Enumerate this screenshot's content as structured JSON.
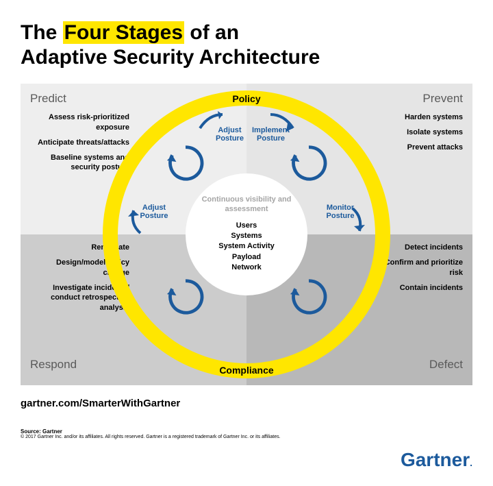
{
  "title": {
    "pre": "The ",
    "highlight": "Four Stages",
    "post": " of an",
    "line2": "Adaptive Security Architecture"
  },
  "ring": {
    "top": "Policy",
    "bottom": "Compliance",
    "color": "#ffe600",
    "width": 22
  },
  "center": {
    "heading": "Continuous visibility and assessment",
    "items": [
      "Users",
      "Systems",
      "System Activity",
      "Payload",
      "Network"
    ]
  },
  "quadrants": {
    "tl": {
      "title": "Predict",
      "bg": "#eeeeee",
      "items": [
        "Assess risk-prioritized exposure",
        "Anticipate threats/attacks",
        "Baseline systems and security posture"
      ]
    },
    "tr": {
      "title": "Prevent",
      "bg": "#e5e5e5",
      "items": [
        "Harden systems",
        "Isolate systems",
        "Prevent attacks"
      ]
    },
    "bl": {
      "title": "Respond",
      "bg": "#cccccc",
      "items": [
        "Remediate",
        "Design/model policy change",
        "Investigate incidents/ conduct retrospective analysis"
      ]
    },
    "br": {
      "title": "Defect",
      "bg": "#b8b8b8",
      "items": [
        "Detect incidents",
        "Confirm and prioritize risk",
        "Contain incidents"
      ]
    }
  },
  "posture": {
    "tl": "Adjust Posture",
    "tr": "Implement Posture",
    "left": "Adjust Posture",
    "right": "Monitor Posture",
    "color": "#1c5a9c"
  },
  "loop_color": "#1c5a9c",
  "footer": {
    "url": "gartner.com/SmarterWithGartner",
    "source": "Source: Gartner",
    "copyright": "© 2017 Gartner Inc. and/or its affiliates. All rights reserved. Gartner is a registered trademark of Gartner Inc. or its affiliates."
  },
  "logo": {
    "text": "Gartner",
    "color": "#1c5a9c"
  }
}
